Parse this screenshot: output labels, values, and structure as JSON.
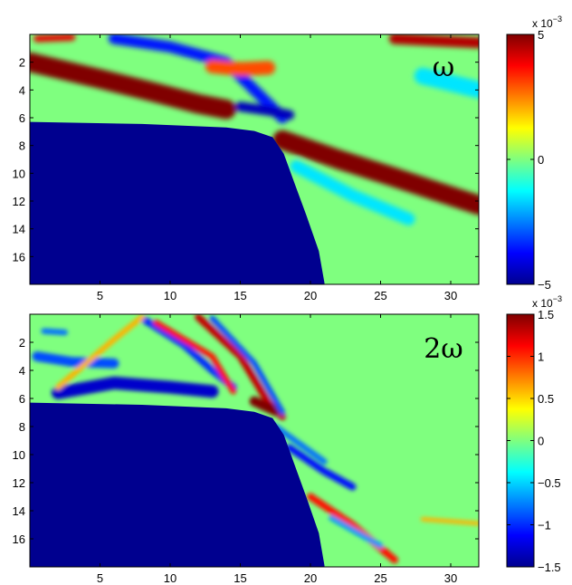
{
  "chart_data": [
    {
      "type": "heatmap",
      "panel_label": "ω",
      "x_ticks": [
        5,
        10,
        15,
        20,
        25,
        30
      ],
      "y_ticks": [
        2,
        4,
        6,
        8,
        10,
        12,
        14,
        16
      ],
      "xlim": [
        0,
        32
      ],
      "ylim": [
        0,
        18
      ],
      "y_direction": "reversed",
      "colormap": "jet",
      "colorbar": {
        "ticks": [
          -5,
          0,
          5
        ],
        "tick_labels": [
          "−5",
          "0",
          "5"
        ],
        "range": [
          -5,
          5
        ],
        "exponent_label": "x 10",
        "exponent": "−3"
      },
      "masked_region": {
        "color": "#00008f",
        "boundary": [
          [
            0,
            6.3
          ],
          [
            8,
            6.45
          ],
          [
            14,
            6.7
          ],
          [
            16,
            6.95
          ],
          [
            17.3,
            7.4
          ],
          [
            18.1,
            8.6
          ],
          [
            18.9,
            10.8
          ],
          [
            19.7,
            13
          ],
          [
            20.6,
            15.6
          ],
          [
            21,
            17.9
          ]
        ]
      },
      "features": [
        {
          "points": [
            [
              0,
              2.0
            ],
            [
              5,
              3.2
            ],
            [
              9,
              4.2
            ],
            [
              12,
              5.0
            ],
            [
              14,
              5.4
            ]
          ],
          "value": 5,
          "width": 1.4
        },
        {
          "points": [
            [
              18,
              7.6
            ],
            [
              22,
              9.0
            ],
            [
              26,
              10.3
            ],
            [
              29,
              11.3
            ],
            [
              32,
              12.3
            ]
          ],
          "value": 5,
          "width": 1.4
        },
        {
          "points": [
            [
              6,
              0.3
            ],
            [
              10,
              0.9
            ],
            [
              14,
              2.0
            ],
            [
              16.5,
              4.5
            ],
            [
              18,
              6.0
            ]
          ],
          "value": -3.5,
          "width": 0.8
        },
        {
          "points": [
            [
              15,
              5.2
            ],
            [
              17,
              5.5
            ],
            [
              18.5,
              5.8
            ]
          ],
          "value": -4.5,
          "width": 0.7
        },
        {
          "points": [
            [
              19,
              9.5
            ],
            [
              23,
              11.6
            ],
            [
              27,
              13.3
            ]
          ],
          "value": -1.5,
          "width": 0.9
        },
        {
          "points": [
            [
              13,
              2.3
            ],
            [
              15,
              2.5
            ],
            [
              17,
              2.4
            ]
          ],
          "value": 3,
          "width": 1.0
        },
        {
          "points": [
            [
              26,
              0.3
            ],
            [
              32,
              0.6
            ]
          ],
          "value": 4.5,
          "width": 0.8
        },
        {
          "points": [
            [
              0.5,
              0.3
            ],
            [
              3,
              0.2
            ]
          ],
          "value": 4,
          "width": 0.5
        },
        {
          "points": [
            [
              28,
              3.0
            ],
            [
              32,
              4.0
            ]
          ],
          "value": -1.5,
          "width": 1.2
        }
      ]
    },
    {
      "type": "heatmap",
      "panel_label": "2ω",
      "x_ticks": [
        5,
        10,
        15,
        20,
        25,
        30
      ],
      "y_ticks": [
        2,
        4,
        6,
        8,
        10,
        12,
        14,
        16
      ],
      "xlim": [
        0,
        32
      ],
      "ylim": [
        0,
        18
      ],
      "y_direction": "reversed",
      "colormap": "jet",
      "colorbar": {
        "ticks": [
          -1.5,
          -1,
          -0.5,
          0,
          0.5,
          1,
          1.5
        ],
        "tick_labels": [
          "−1.5",
          "−1",
          "−0.5",
          "0",
          "0.5",
          "1",
          "1.5"
        ],
        "range": [
          -1.5,
          1.5
        ],
        "exponent_label": "x 10",
        "exponent": "−3"
      },
      "masked_region": {
        "color": "#00008f",
        "boundary": [
          [
            0,
            6.3
          ],
          [
            8,
            6.45
          ],
          [
            14,
            6.7
          ],
          [
            16,
            6.95
          ],
          [
            17.3,
            7.4
          ],
          [
            18.1,
            8.6
          ],
          [
            18.9,
            10.8
          ],
          [
            19.7,
            13
          ],
          [
            20.6,
            15.6
          ],
          [
            21,
            17.9
          ]
        ]
      },
      "features": [
        {
          "points": [
            [
              2,
              5.6
            ],
            [
              6,
              4.9
            ],
            [
              10,
              5.2
            ],
            [
              13,
              5.5
            ]
          ],
          "value": -1.3,
          "width": 0.9
        },
        {
          "points": [
            [
              0.5,
              3.0
            ],
            [
              3,
              3.4
            ],
            [
              6,
              3.5
            ]
          ],
          "value": -0.9,
          "width": 0.7
        },
        {
          "points": [
            [
              8,
              0.3
            ],
            [
              11,
              2.2
            ],
            [
              13,
              4.0
            ],
            [
              14.5,
              5.2
            ]
          ],
          "value": -1.0,
          "width": 0.5
        },
        {
          "points": [
            [
              2,
              5.2
            ],
            [
              6,
              1.8
            ],
            [
              8,
              0.2
            ]
          ],
          "value": 0.6,
          "width": 0.4
        },
        {
          "points": [
            [
              9,
              0.6
            ],
            [
              13,
              3.0
            ],
            [
              14.5,
              5.5
            ]
          ],
          "value": 1.1,
          "width": 0.4
        },
        {
          "points": [
            [
              12,
              0.2
            ],
            [
              15,
              3.0
            ],
            [
              17,
              6.3
            ],
            [
              18,
              7.3
            ]
          ],
          "value": 1.3,
          "width": 0.5
        },
        {
          "points": [
            [
              16,
              6.2
            ],
            [
              17.5,
              6.9
            ]
          ],
          "value": 1.5,
          "width": 0.7
        },
        {
          "points": [
            [
              13,
              0.3
            ],
            [
              16,
              3.5
            ],
            [
              18,
              7.0
            ]
          ],
          "value": -0.9,
          "width": 0.4
        },
        {
          "points": [
            [
              18.5,
              9.5
            ],
            [
              21,
              11.2
            ],
            [
              23,
              12.3
            ]
          ],
          "value": -1.1,
          "width": 0.5
        },
        {
          "points": [
            [
              20,
              13.0
            ],
            [
              23,
              15.0
            ],
            [
              26,
              17.5
            ]
          ],
          "value": 1.1,
          "width": 0.5
        },
        {
          "points": [
            [
              17.5,
              8.0
            ],
            [
              21,
              10.5
            ]
          ],
          "value": -0.8,
          "width": 0.4
        },
        {
          "points": [
            [
              21.5,
              14.5
            ],
            [
              25,
              16.5
            ]
          ],
          "value": -0.7,
          "width": 0.4
        },
        {
          "points": [
            [
              28,
              14.6
            ],
            [
              32,
              14.9
            ]
          ],
          "value": 0.6,
          "width": 0.3
        },
        {
          "points": [
            [
              1,
              1.2
            ],
            [
              2.5,
              1.3
            ]
          ],
          "value": -0.8,
          "width": 0.4
        }
      ]
    }
  ]
}
